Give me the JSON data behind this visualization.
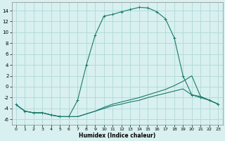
{
  "bg_color": "#d8f0f0",
  "grid_color": "#b0d8d8",
  "line_color": "#1a7a6a",
  "xlabel": "Humidex (Indice chaleur)",
  "xlim": [
    -0.5,
    23.5
  ],
  "ylim": [
    -7,
    15.5
  ],
  "yticks": [
    -6,
    -4,
    -2,
    0,
    2,
    4,
    6,
    8,
    10,
    12,
    14
  ],
  "xticks": [
    0,
    1,
    2,
    3,
    4,
    5,
    6,
    7,
    8,
    9,
    10,
    11,
    12,
    13,
    14,
    15,
    16,
    17,
    18,
    19,
    20,
    21,
    22,
    23
  ],
  "series": [
    {
      "x": [
        0,
        1,
        2,
        3,
        4,
        5,
        6,
        7,
        8,
        9,
        10,
        11,
        12,
        13,
        14,
        15,
        16,
        17,
        18,
        19,
        20,
        21,
        22,
        23
      ],
      "y": [
        -3.3,
        -4.5,
        -4.8,
        -4.8,
        -5.2,
        -5.5,
        -5.5,
        -2.5,
        4.0,
        9.5,
        13.0,
        13.3,
        13.8,
        14.2,
        14.6,
        14.5,
        13.8,
        12.5,
        9.0,
        2.0,
        -1.5,
        -2.0,
        -2.5,
        -3.2
      ],
      "marker": true
    },
    {
      "x": [
        0,
        1,
        2,
        3,
        4,
        5,
        6,
        7,
        8,
        9,
        10,
        11,
        12,
        13,
        14,
        15,
        16,
        17,
        18,
        19,
        20,
        21,
        22,
        23
      ],
      "y": [
        -3.3,
        -4.5,
        -4.8,
        -4.8,
        -5.2,
        -5.5,
        -5.5,
        -5.5,
        -5.0,
        -4.5,
        -3.8,
        -3.2,
        -2.8,
        -2.4,
        -2.0,
        -1.5,
        -1.0,
        -0.5,
        0.2,
        1.0,
        2.0,
        -1.8,
        -2.5,
        -3.2
      ],
      "marker": false
    },
    {
      "x": [
        0,
        1,
        2,
        3,
        4,
        5,
        6,
        7,
        8,
        9,
        10,
        11,
        12,
        13,
        14,
        15,
        16,
        17,
        18,
        19,
        20,
        21,
        22,
        23
      ],
      "y": [
        -3.3,
        -4.5,
        -4.8,
        -4.8,
        -5.2,
        -5.5,
        -5.5,
        -5.5,
        -5.0,
        -4.5,
        -4.0,
        -3.5,
        -3.2,
        -2.8,
        -2.5,
        -2.0,
        -1.6,
        -1.2,
        -0.8,
        -0.4,
        -1.5,
        -1.8,
        -2.5,
        -3.2
      ],
      "marker": false
    }
  ]
}
